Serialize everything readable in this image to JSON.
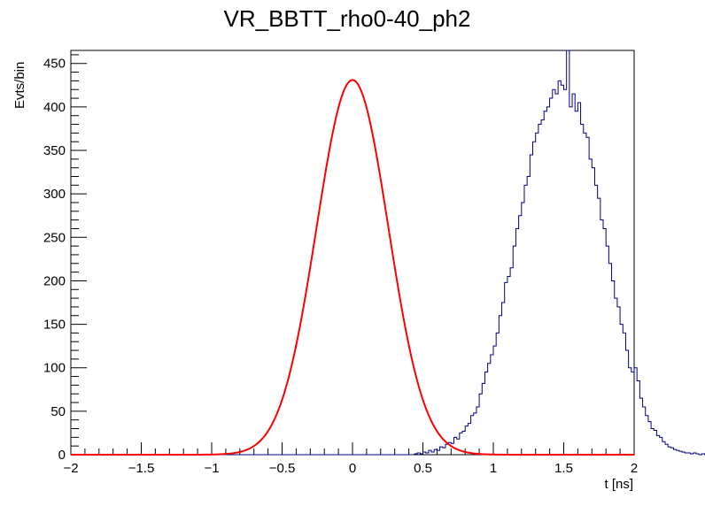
{
  "chart_data": {
    "type": "line",
    "title": "VR_BBTT_rho0-40_ph2",
    "xlabel": "t [ns]",
    "ylabel": "Evts/bin",
    "xlim": [
      -2,
      2
    ],
    "ylim": [
      0,
      465
    ],
    "x_major_ticks": [
      -2,
      -1.5,
      -1,
      -0.5,
      0,
      0.5,
      1,
      1.5,
      2
    ],
    "x_tick_labels": [
      "−2",
      "−1.5",
      "−1",
      "−0.5",
      "0",
      "0.5",
      "1",
      "1.5",
      "2"
    ],
    "y_major_ticks": [
      0,
      50,
      100,
      150,
      200,
      250,
      300,
      350,
      400,
      450
    ],
    "y_tick_labels": [
      "0",
      "50",
      "100",
      "150",
      "200",
      "250",
      "300",
      "350",
      "400",
      "450"
    ],
    "grid": false,
    "legend": "none",
    "colors": {
      "histogram": "#000080",
      "fit": "#ff0000"
    },
    "series": [
      {
        "style": "step-histogram",
        "bin_width": 0.02,
        "x_start": -2.0,
        "values": [
          0,
          0,
          0,
          0,
          0,
          0,
          0,
          0,
          0,
          0,
          0,
          0,
          0,
          0,
          0,
          0,
          0,
          0,
          0,
          0,
          0,
          0,
          0,
          0,
          0,
          0,
          0,
          0,
          0,
          0,
          0,
          0,
          0,
          0,
          0,
          0,
          0,
          0,
          0,
          0,
          0,
          0,
          0,
          0,
          0,
          0,
          0,
          0,
          0,
          0,
          0,
          0,
          0,
          0,
          0,
          0,
          0,
          0,
          0,
          0,
          0,
          0,
          0,
          0,
          0,
          0,
          0,
          0,
          0,
          0,
          0,
          0,
          0,
          0,
          0,
          0,
          0,
          0,
          0,
          0,
          0,
          0,
          0,
          0,
          0,
          0,
          0,
          0,
          0,
          0,
          0,
          0,
          0,
          0,
          0,
          0,
          0,
          0,
          0,
          0,
          0,
          0,
          0,
          0,
          0,
          0,
          0,
          0,
          0,
          0,
          0,
          0,
          0,
          0,
          0,
          0,
          0,
          0,
          0,
          0,
          0,
          0,
          1,
          2,
          1,
          3,
          2,
          5,
          3,
          6,
          5,
          9,
          8,
          12,
          14,
          13,
          20,
          18,
          25,
          27,
          33,
          36,
          45,
          48,
          55,
          70,
          82,
          95,
          105,
          115,
          125,
          140,
          160,
          175,
          198,
          205,
          215,
          240,
          260,
          275,
          290,
          310,
          320,
          345,
          360,
          370,
          380,
          385,
          395,
          400,
          410,
          420,
          415,
          430,
          425,
          420,
          470,
          400,
          415,
          395,
          405,
          380,
          370,
          365,
          340,
          330,
          310,
          295,
          270,
          260,
          240,
          220,
          200,
          180,
          170,
          150,
          140,
          120,
          100,
          95,
          100,
          85,
          65,
          55,
          45,
          38,
          30,
          28,
          22,
          20,
          15,
          12,
          9,
          8,
          6,
          5,
          4,
          3,
          2,
          2,
          1,
          2,
          1,
          0,
          1,
          0,
          0,
          1,
          0,
          0,
          0,
          0,
          0,
          0,
          0,
          0,
          0,
          0,
          0,
          0,
          0,
          0,
          0,
          0,
          0,
          0,
          0,
          0,
          0,
          0,
          0,
          0,
          0,
          0,
          0,
          0,
          0,
          0,
          0,
          0
        ]
      },
      {
        "style": "gaussian-fit",
        "constant": 431,
        "mean": 0.0,
        "sigma": 0.255
      }
    ]
  }
}
